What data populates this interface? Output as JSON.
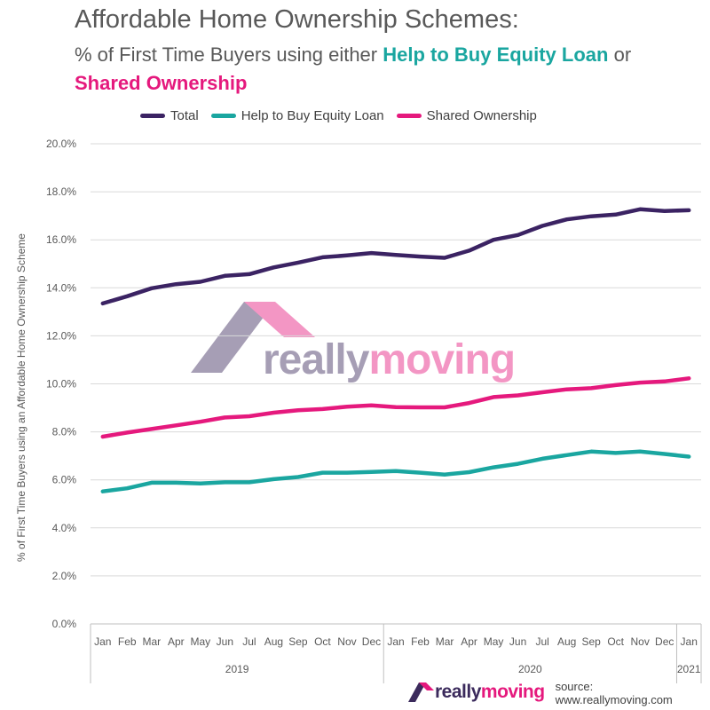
{
  "header": {
    "title": "Affordable Home Ownership Schemes:",
    "subtitle_prefix": "% of First Time Buyers using either ",
    "subtitle_teal": "Help to Buy Equity Loan",
    "subtitle_mid": " or",
    "subtitle_pink": "Shared Ownership"
  },
  "footer": {
    "logo_really": "really",
    "logo_moving": "moving",
    "source": "source: www.reallymoving.com"
  },
  "colors": {
    "total": "#3b2363",
    "help_to_buy": "#1aa6a0",
    "shared_ownership": "#e5197d",
    "watermark_purple": "#3b2a5c",
    "watermark_pink": "#e5197d"
  },
  "chart_data": {
    "type": "line",
    "title": "Affordable Home Ownership Schemes:",
    "subtitle": "% of First Time Buyers using either Help to Buy Equity Loan or Shared Ownership",
    "ylabel": "% of First Time Buyers using an Affordable Home Ownership Scheme",
    "xlabel": "",
    "ylim": [
      0,
      20
    ],
    "yticks": [
      "0.0%",
      "2.0%",
      "4.0%",
      "6.0%",
      "8.0%",
      "10.0%",
      "12.0%",
      "14.0%",
      "16.0%",
      "18.0%",
      "20.0%"
    ],
    "categories": [
      "Jan",
      "Feb",
      "Mar",
      "Apr",
      "May",
      "Jun",
      "Jul",
      "Aug",
      "Sep",
      "Oct",
      "Nov",
      "Dec",
      "Jan",
      "Feb",
      "Mar",
      "Apr",
      "May",
      "Jun",
      "Jul",
      "Aug",
      "Sep",
      "Oct",
      "Nov",
      "Dec",
      "Jan"
    ],
    "year_groups": [
      {
        "label": "2019",
        "count": 12
      },
      {
        "label": "2020",
        "count": 12
      },
      {
        "label": "2021",
        "count": 1
      }
    ],
    "legend_position": "top",
    "grid": true,
    "series": [
      {
        "name": "Total",
        "color": "#3b2363",
        "values": [
          13.35,
          13.65,
          13.98,
          14.15,
          14.25,
          14.5,
          14.57,
          14.85,
          15.05,
          15.27,
          15.35,
          15.45,
          15.37,
          15.3,
          15.25,
          15.55,
          16.0,
          16.2,
          16.58,
          16.85,
          16.98,
          17.05,
          17.27,
          17.2,
          17.23
        ]
      },
      {
        "name": "Help to Buy Equity Loan",
        "color": "#1aa6a0",
        "values": [
          5.52,
          5.65,
          5.88,
          5.88,
          5.85,
          5.9,
          5.9,
          6.03,
          6.12,
          6.3,
          6.3,
          6.33,
          6.37,
          6.3,
          6.22,
          6.32,
          6.52,
          6.67,
          6.88,
          7.03,
          7.18,
          7.12,
          7.18,
          7.08,
          6.97
        ]
      },
      {
        "name": "Shared Ownership",
        "color": "#e5197d",
        "values": [
          7.8,
          7.97,
          8.12,
          8.27,
          8.42,
          8.6,
          8.65,
          8.8,
          8.9,
          8.95,
          9.05,
          9.1,
          9.03,
          9.02,
          9.02,
          9.2,
          9.45,
          9.52,
          9.65,
          9.77,
          9.82,
          9.95,
          10.05,
          10.1,
          10.23
        ]
      }
    ]
  }
}
